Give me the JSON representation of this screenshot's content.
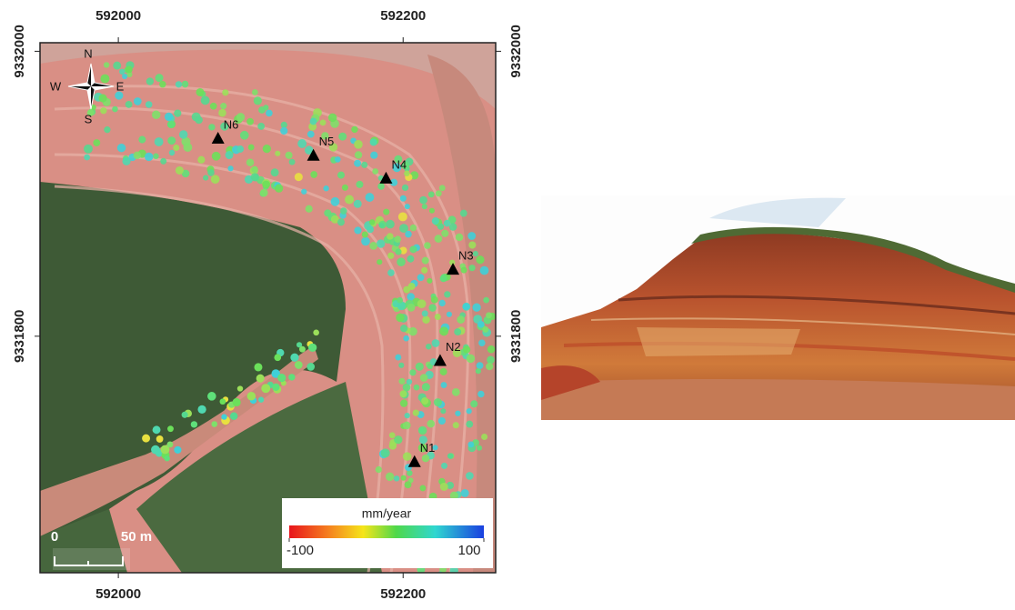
{
  "map": {
    "xlim": [
      591945,
      592265
    ],
    "ylim": [
      9331634,
      9332006
    ],
    "xticks": [
      592000,
      592200
    ],
    "yticks": [
      9332000,
      9331800
    ],
    "compass": {
      "north": "N",
      "south": "S",
      "west": "W",
      "east": "E"
    },
    "stations": [
      {
        "label": "N1",
        "easting": 592208,
        "northing": 9331712
      },
      {
        "label": "N2",
        "easting": 592226,
        "northing": 9331783
      },
      {
        "label": "N3",
        "easting": 592235,
        "northing": 9331847
      },
      {
        "label": "N4",
        "easting": 592188,
        "northing": 9331911
      },
      {
        "label": "N5",
        "easting": 592137,
        "northing": 9331927
      },
      {
        "label": "N6",
        "easting": 592070,
        "northing": 9331939
      }
    ],
    "colorbar": {
      "title": "mm/year",
      "ticks": [
        -100,
        100
      ]
    },
    "scale_bar": {
      "start": "0",
      "end": "50 m"
    }
  }
}
